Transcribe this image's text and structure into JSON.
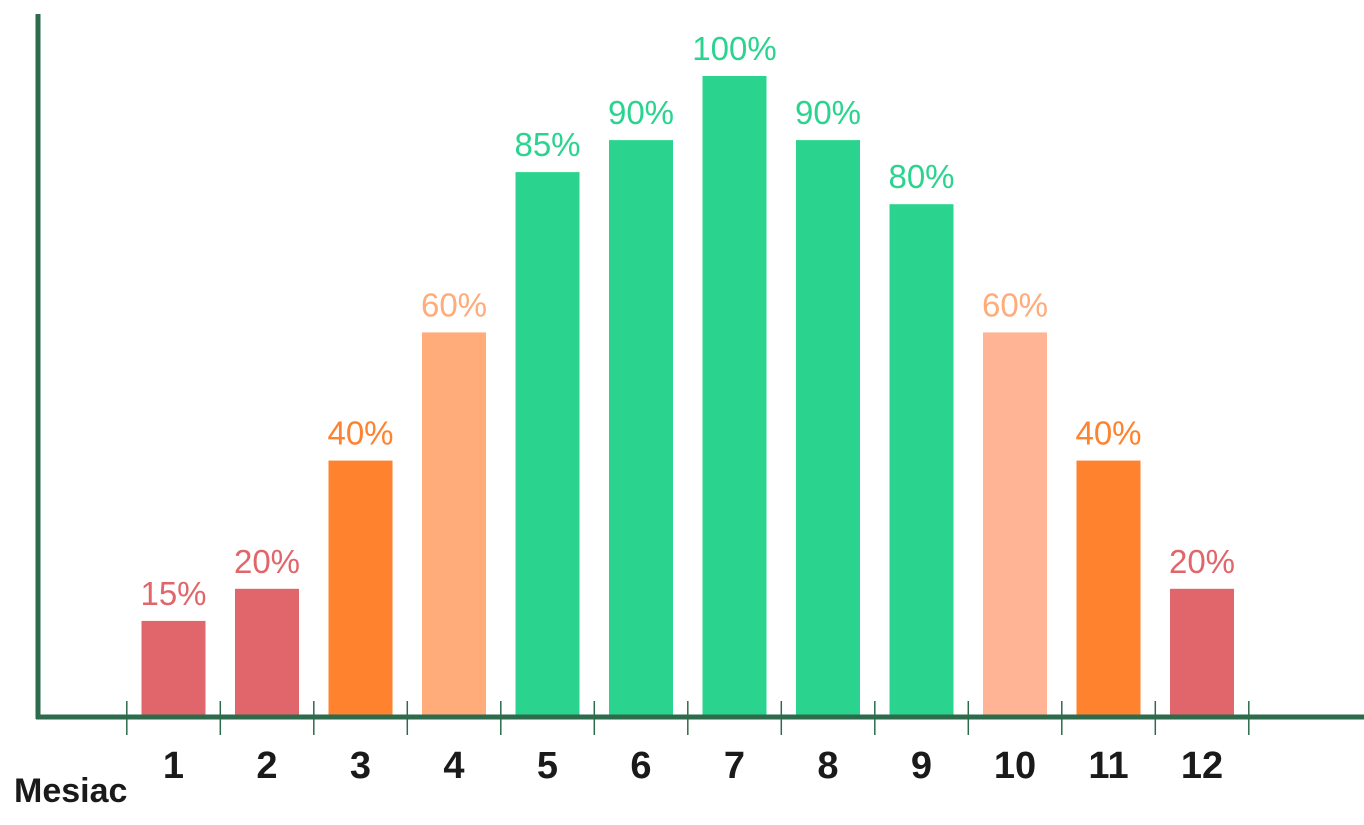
{
  "chart_data": {
    "type": "bar",
    "categories": [
      "1",
      "2",
      "3",
      "4",
      "5",
      "6",
      "7",
      "8",
      "9",
      "10",
      "11",
      "12"
    ],
    "values": [
      15,
      20,
      40,
      60,
      85,
      90,
      100,
      90,
      80,
      60,
      40,
      20
    ],
    "value_labels": [
      "15%",
      "20%",
      "40%",
      "60%",
      "85%",
      "90%",
      "100%",
      "90%",
      "80%",
      "60%",
      "40%",
      "20%"
    ],
    "bar_colors": [
      "#e0666b",
      "#e0666b",
      "#ff822e",
      "#ffab7a",
      "#2ad48e",
      "#2ad48e",
      "#2ad48e",
      "#2ad48e",
      "#2ad48e",
      "#ffb495",
      "#ff822e",
      "#e0666b"
    ],
    "label_colors": [
      "#e0666b",
      "#e0666b",
      "#ff822e",
      "#ffab7a",
      "#2ad48e",
      "#2ad48e",
      "#2ad48e",
      "#2ad48e",
      "#2ad48e",
      "#ffab7a",
      "#ff822e",
      "#e0666b"
    ],
    "xlabel": "Mesiac",
    "ylabel": "",
    "title": "",
    "ylim": [
      0,
      100
    ],
    "grid": false,
    "axis_color": "#2e6a4c"
  }
}
